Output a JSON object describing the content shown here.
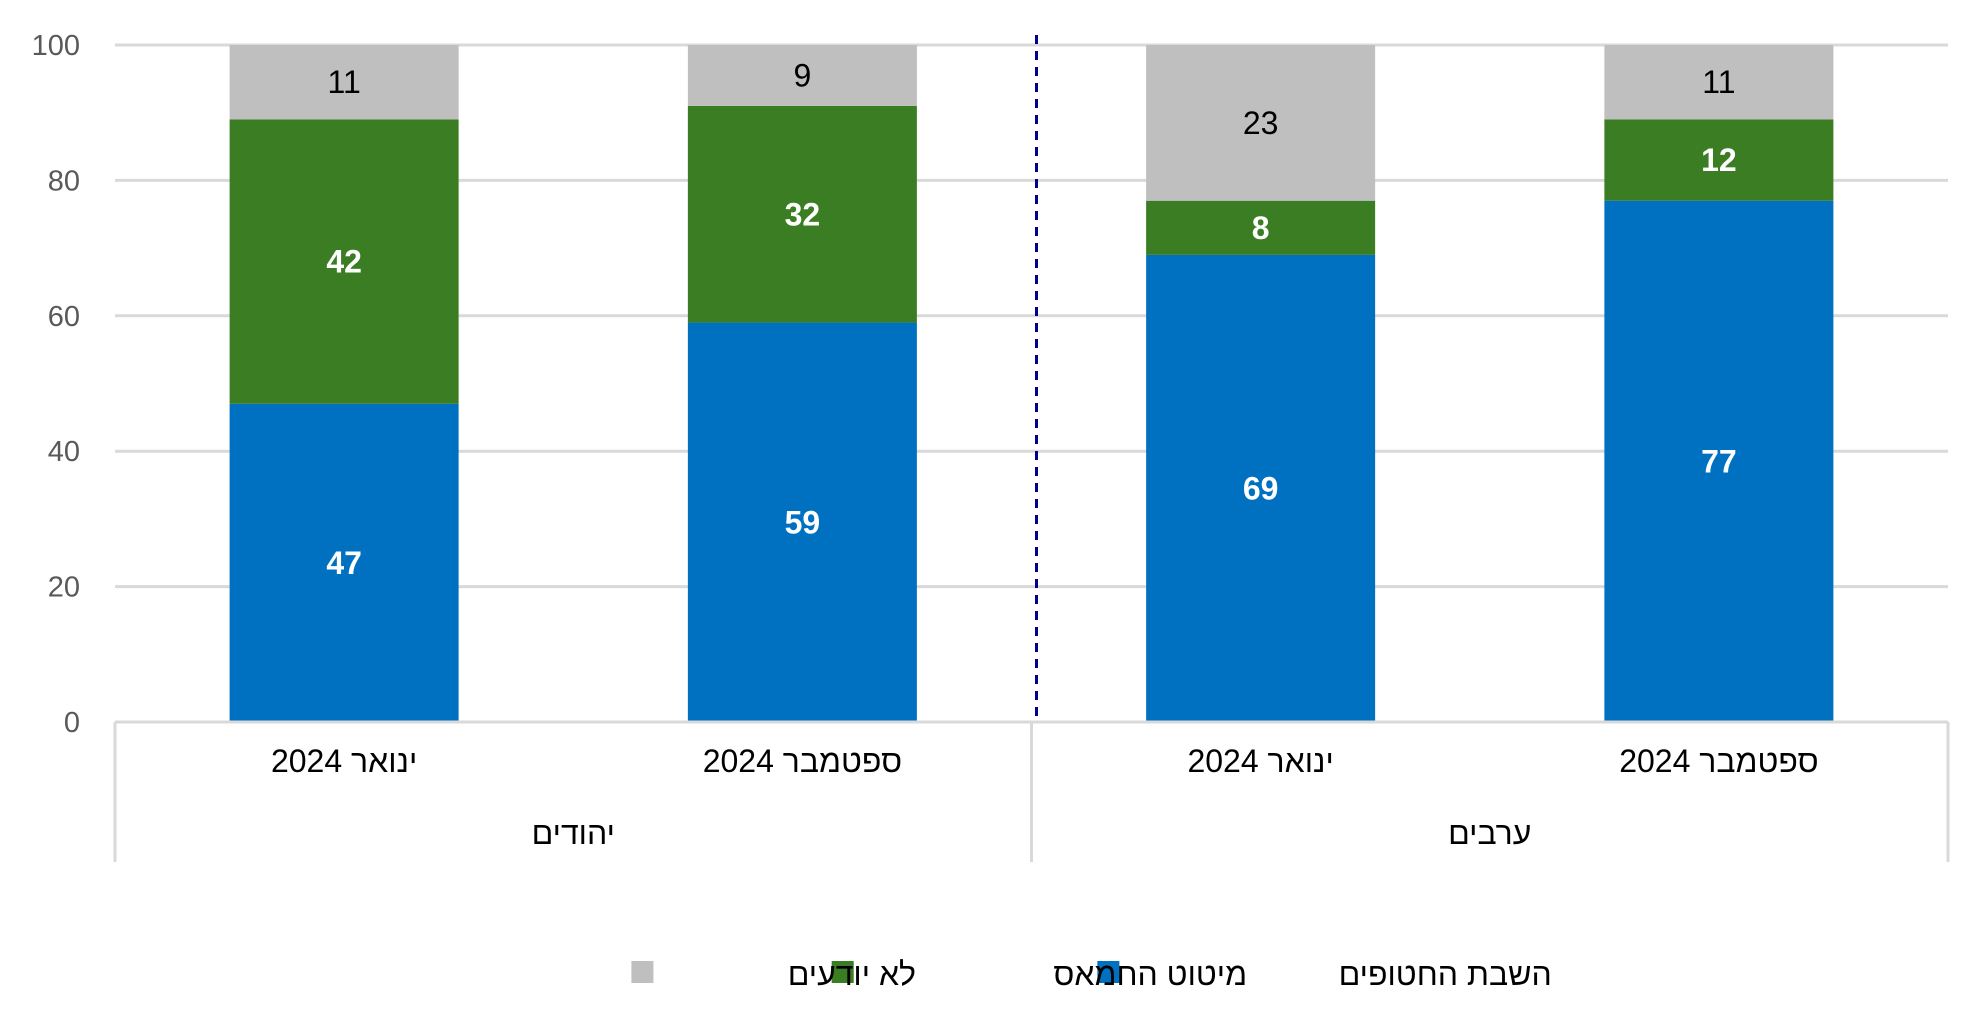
{
  "chart_data": {
    "type": "bar",
    "stacked": true,
    "categories": [
      "ינואר 2024",
      "ספטמבר 2024",
      "ינואר 2024",
      "ספטמבר 2024"
    ],
    "groups": [
      {
        "label": "יהודים",
        "categories": [
          0,
          1
        ]
      },
      {
        "label": "ערבים",
        "categories": [
          2,
          3
        ]
      }
    ],
    "series": [
      {
        "name": "השבת החטופים",
        "color": "#0070C0",
        "label_color": "#ffffff",
        "label_bold": true,
        "values": [
          47,
          59,
          69,
          77
        ]
      },
      {
        "name": "מיטוט החמאס",
        "color": "#3A7D22",
        "label_color": "#ffffff",
        "label_bold": true,
        "values": [
          42,
          32,
          8,
          12
        ]
      },
      {
        "name": "לא יודעים",
        "color": "#BFBFBF",
        "label_color": "#000000",
        "label_bold": false,
        "values": [
          11,
          9,
          23,
          11
        ]
      }
    ],
    "yticks": [
      "0",
      "20",
      "40",
      "60",
      "80",
      "100"
    ],
    "ylim": [
      0,
      100
    ],
    "grid": true,
    "group_divider": "dashed-navy",
    "divider_color": "#00008B",
    "gridline_color": "#D9D9D9",
    "legend_placement": "bottom-center"
  }
}
